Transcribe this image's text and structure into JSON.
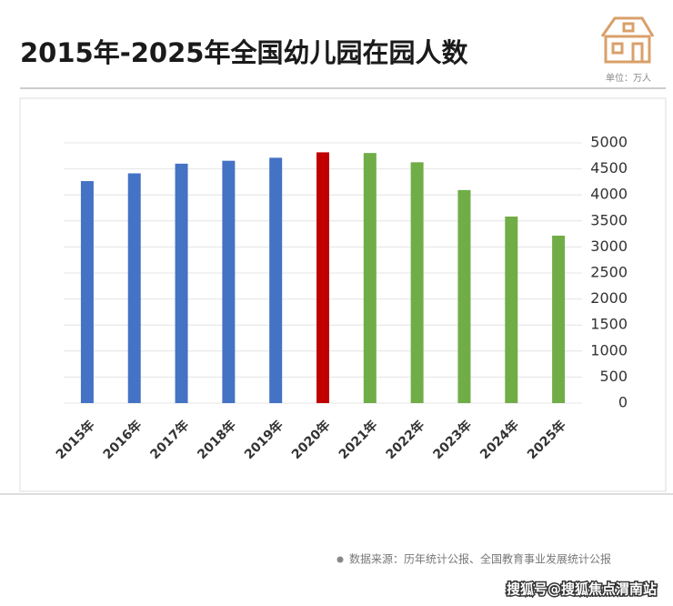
{
  "chart_data": {
    "type": "bar",
    "title": "2015年-2025年全国幼儿园在园人数",
    "unit": "单位：万人",
    "categories": [
      "2015年",
      "2016年",
      "2017年",
      "2018年",
      "2019年",
      "2020年",
      "2021年",
      "2022年",
      "2023年",
      "2024年",
      "2025年"
    ],
    "values": [
      4265,
      4414,
      4600,
      4656,
      4714,
      4818,
      4805,
      4627,
      4093,
      3584,
      3217
    ],
    "colors": [
      "#4472c4",
      "#4472c4",
      "#4472c4",
      "#4472c4",
      "#4472c4",
      "#c00000",
      "#70ad47",
      "#70ad47",
      "#70ad47",
      "#70ad47",
      "#70ad47"
    ],
    "ylim": [
      0,
      5000
    ],
    "yticks": [
      0,
      500,
      1000,
      1500,
      2000,
      2500,
      3000,
      3500,
      4000,
      4500,
      5000
    ],
    "grid": true,
    "source": "数据来源：历年统计公报、全国教育事业发展统计公报",
    "watermark": "搜狐号@搜狐焦点渭南站"
  }
}
